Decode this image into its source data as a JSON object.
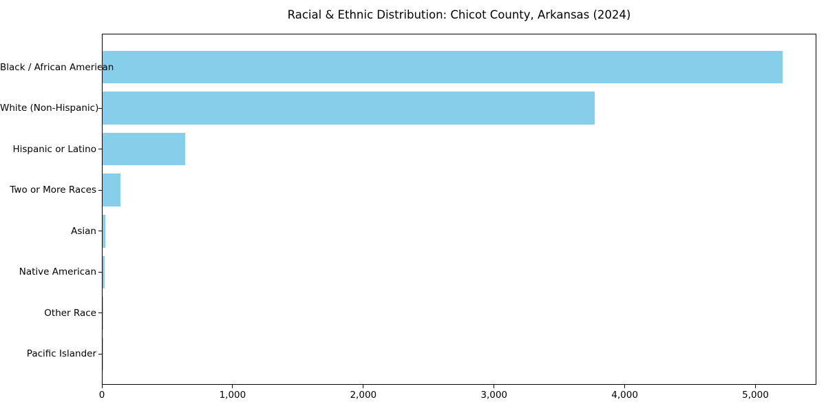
{
  "chart_data": {
    "type": "bar",
    "orientation": "horizontal",
    "title": "Racial & Ethnic Distribution: Chicot County, Arkansas (2024)",
    "categories": [
      "Black / African American",
      "White (Non-Hispanic)",
      "Hispanic or Latino",
      "Two or More Races",
      "Asian",
      "Native American",
      "Other Race",
      "Pacific Islander"
    ],
    "values": [
      5205,
      3765,
      630,
      137,
      22,
      18,
      6,
      1
    ],
    "xlabel": "",
    "ylabel": "",
    "xlim": [
      0,
      5466
    ],
    "xticks": {
      "values": [
        0,
        1000,
        2000,
        3000,
        4000,
        5000
      ],
      "labels": [
        "0",
        "1,000",
        "2,000",
        "3,000",
        "4,000",
        "5,000"
      ]
    },
    "grid": false,
    "legend": null,
    "bar_color": "#87CEEB",
    "axis_color": "#000000",
    "text_color": "#000000",
    "background_color": "#FFFFFF"
  }
}
